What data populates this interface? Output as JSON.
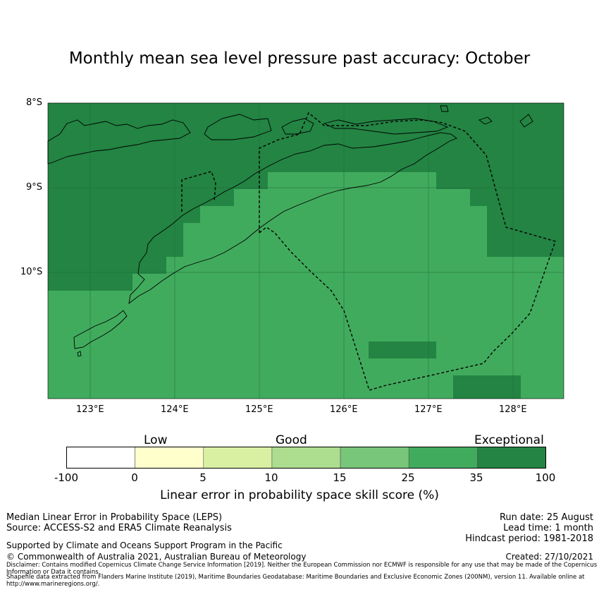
{
  "title": "Monthly mean sea level pressure past accuracy: October",
  "map": {
    "lat_ticks": [
      "8°S",
      "9°S",
      "10°S"
    ],
    "lon_ticks": [
      "123°E",
      "124°E",
      "125°E",
      "126°E",
      "127°E",
      "128°E"
    ],
    "extent": {
      "lon": [
        122.5,
        128.6
      ],
      "lat": [
        -11.5,
        -8.0
      ]
    },
    "colors": {
      "exceptional": "#238443",
      "very_good": "#41ab5d",
      "ocean_border": "#000000"
    }
  },
  "colorbar": {
    "categories": [
      "Low",
      "Good",
      "Exceptional"
    ],
    "ticks": [
      "-100",
      "0",
      "5",
      "10",
      "15",
      "25",
      "35",
      "100"
    ],
    "colors": [
      "#ffffff",
      "#ffffcc",
      "#d9f0a3",
      "#addd8e",
      "#78c679",
      "#41ab5d",
      "#238443"
    ],
    "label": "Linear error in probability space skill score (%)"
  },
  "footer": {
    "left_line1": "Median Linear Error in Probability Space (LEPS)",
    "left_line2": "Source: ACCESS-S2 and ERA5 Climate Reanalysis",
    "support": "Supported by Climate and Oceans Support Program in the Pacific",
    "copyright": "© Commonwealth of Australia 2021, Australian Bureau of Meteorology",
    "run_date": "Run date: 25 August",
    "lead_time": "Lead time: 1 month",
    "hindcast": "Hindcast period: 1981-2018",
    "created": "Created: 27/10/2021",
    "disclaimer": "Disclaimer: Contains modified Copernicus Climate Change Service Information [2019]. Neither the European Commission nor ECMWF is responsible for any use that may be made of the Copernicus Information or Data it contains.",
    "shapefile": "Shapefile data extracted from Flanders Marine Institute (2019), Maritime Boundaries Geodatabase: Maritime Boundaries and Exclusive Economic Zones (200NM), version 11. Available online at http://www.marineregions.org/."
  }
}
